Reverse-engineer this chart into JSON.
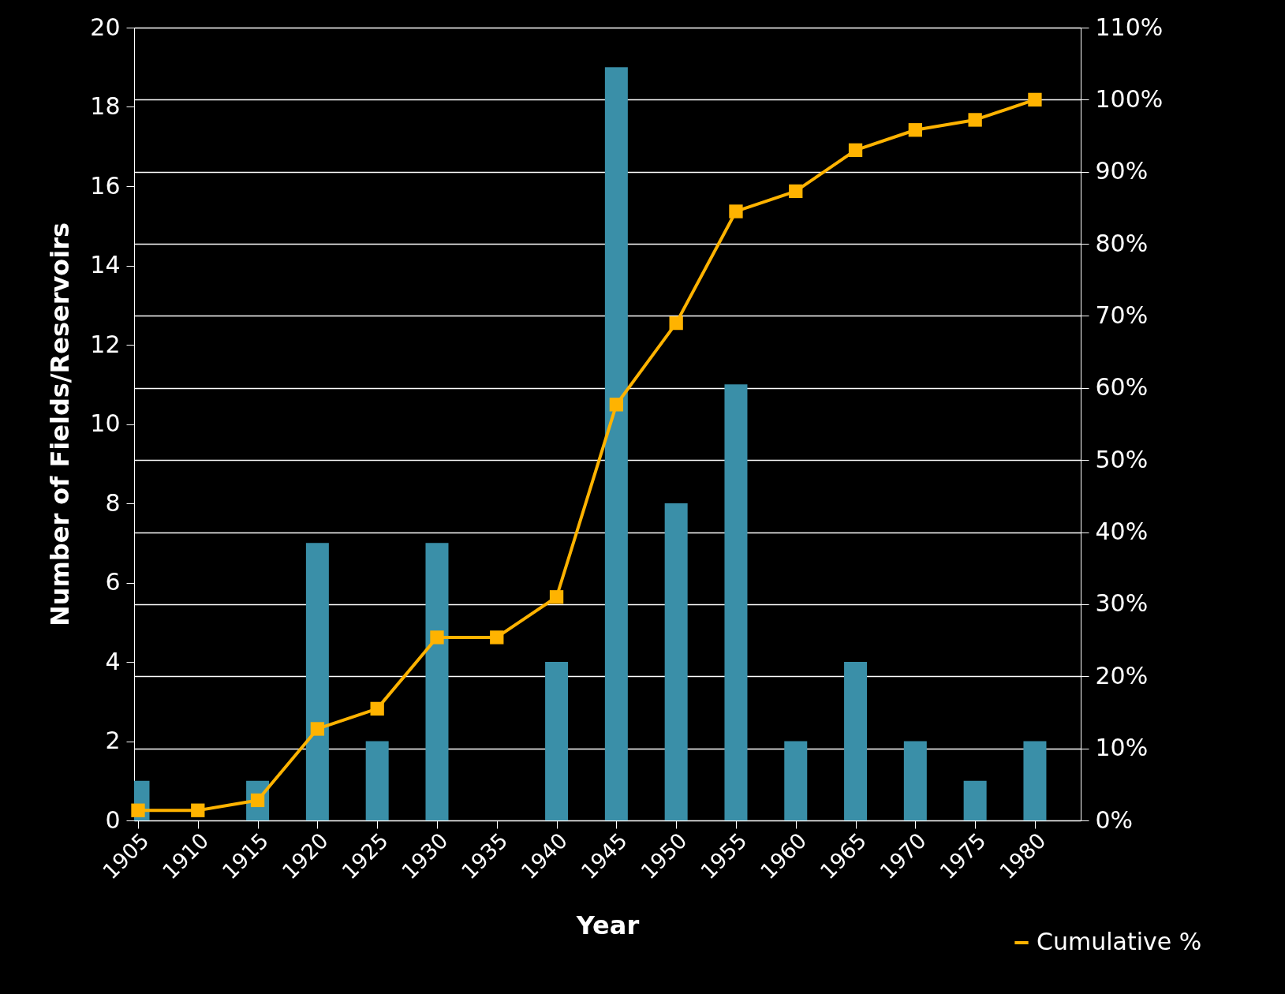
{
  "chart_data": {
    "type": "bar",
    "xlabel": "Year",
    "ylabel": "Number of Fields/Reservoirs",
    "x": [
      1905,
      1910,
      1915,
      1920,
      1925,
      1930,
      1935,
      1940,
      1945,
      1950,
      1955,
      1960,
      1965,
      1970,
      1975,
      1980
    ],
    "series": [
      {
        "color": "#3a8fa8",
        "values": [
          1,
          0,
          1,
          7,
          2,
          7,
          0,
          4,
          19,
          8,
          11,
          2,
          4,
          2,
          1,
          2
        ]
      },
      {
        "type": "line",
        "name": "Cumulative %",
        "color": "#ffb300",
        "axis": "y2",
        "marker": "square",
        "values": [
          1.4,
          1.4,
          2.8,
          12.7,
          15.5,
          25.4,
          25.4,
          31.0,
          57.7,
          69.0,
          84.5,
          87.3,
          93.0,
          95.8,
          97.2,
          100
        ]
      }
    ],
    "xlim": [
      1905,
      1983.5
    ],
    "xticks": [
      1905,
      1910,
      1915,
      1920,
      1925,
      1930,
      1935,
      1940,
      1945,
      1950,
      1955,
      1960,
      1965,
      1970,
      1975,
      1980
    ],
    "ylim": [
      0,
      20
    ],
    "yticks": [
      0,
      2,
      4,
      6,
      8,
      10,
      12,
      14,
      16,
      18,
      20
    ],
    "y2lim": [
      0,
      110
    ],
    "y2ticks": [
      {
        "value": 0,
        "label": "0%"
      },
      {
        "value": 10,
        "label": "10%"
      },
      {
        "value": 20,
        "label": "20%"
      },
      {
        "value": 30,
        "label": "30%"
      },
      {
        "value": 40,
        "label": "40%"
      },
      {
        "value": 50,
        "label": "50%"
      },
      {
        "value": 60,
        "label": "60%"
      },
      {
        "value": 70,
        "label": "70%"
      },
      {
        "value": 80,
        "label": "80%"
      },
      {
        "value": 90,
        "label": "90%"
      },
      {
        "value": 100,
        "label": "100%"
      },
      {
        "value": 110,
        "label": "110%"
      }
    ],
    "grid": "y",
    "legend": "bottom right"
  }
}
